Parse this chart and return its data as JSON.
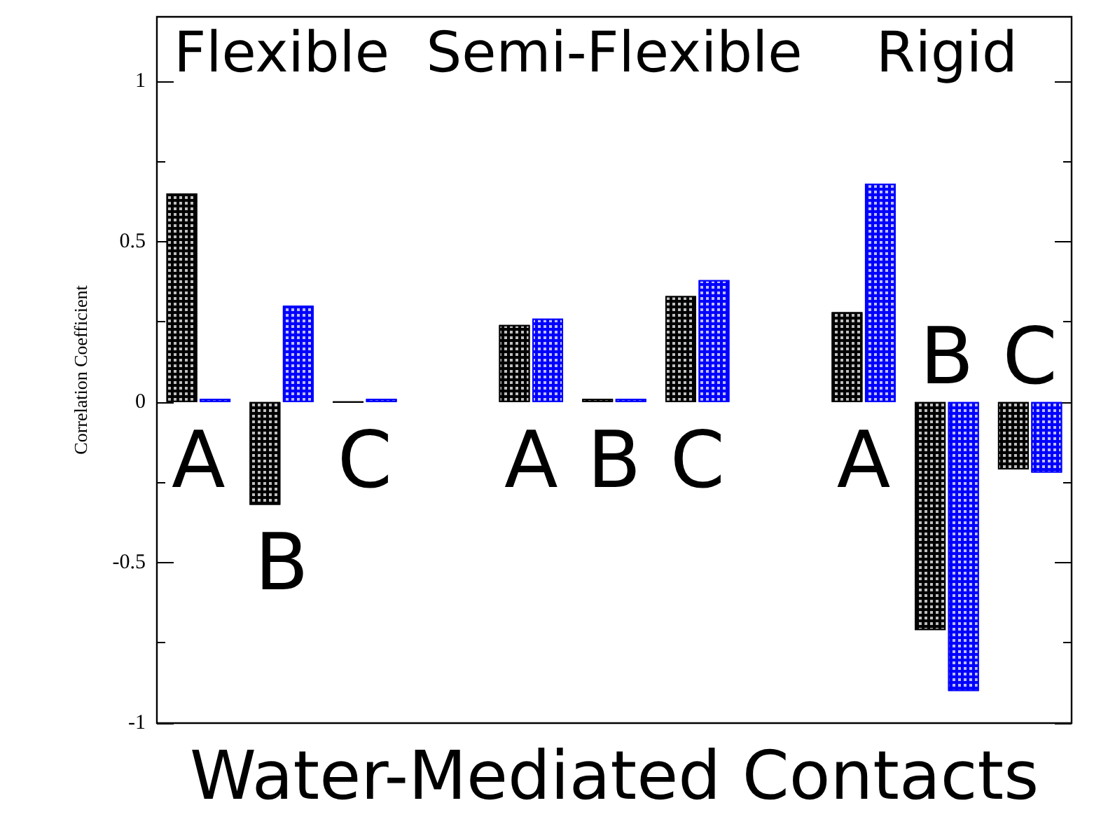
{
  "chart_data": {
    "type": "bar",
    "xlabel": "Water-Mediated Contacts",
    "ylabel": "Correlation Coefficient",
    "categories": [
      "A",
      "B",
      "C",
      null,
      "A",
      "B",
      "C",
      null,
      "A",
      "B",
      "C"
    ],
    "series": [
      {
        "color": "#000000",
        "values": [
          0.65,
          -0.32,
          0,
          null,
          0.24,
          0.01,
          0.33,
          null,
          0.28,
          -0.71,
          -0.21
        ]
      },
      {
        "color": "#0000ff",
        "values": [
          0.01,
          0.3,
          0.01,
          null,
          0.26,
          0.01,
          0.38,
          null,
          0.68,
          -0.9,
          -0.22
        ]
      }
    ],
    "annotations": [
      "Flexible",
      "Semi-Flexible",
      "Rigid"
    ],
    "ylim": [
      -1,
      1.2
    ],
    "yticks": [
      -1,
      {
        "value": -0.75,
        "label": null
      },
      -0.5,
      {
        "value": -0.25,
        "label": null
      },
      0,
      {
        "value": 0.25,
        "label": null
      },
      0.5,
      {
        "value": 0.75,
        "label": null
      },
      1
    ],
    "grid": false
  }
}
